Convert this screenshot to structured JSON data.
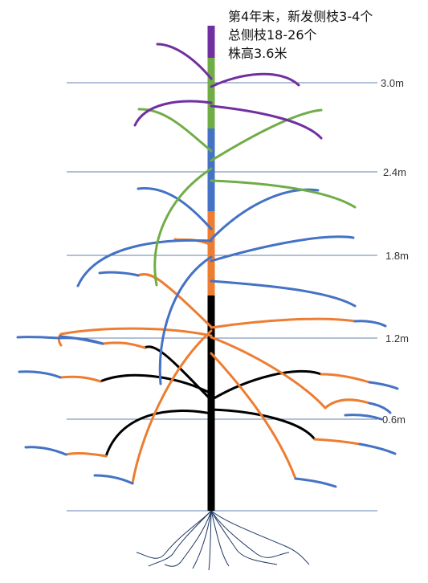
{
  "annotation": {
    "line1": "第4年末，新发侧枝3-4个",
    "line2": "总侧枝18-26个",
    "line3": "株高3.6米"
  },
  "height_markers": [
    {
      "label": "3.0m",
      "value": 3.0
    },
    {
      "label": "2.4m",
      "value": 2.4
    },
    {
      "label": "1.8m",
      "value": 1.8
    },
    {
      "label": "1.2m",
      "value": 1.2
    },
    {
      "label": "0.6m",
      "value": 0.6
    }
  ],
  "colors": {
    "year1": "#000000",
    "year2": "#ed7d31",
    "year3": "#4472c4",
    "year4": "#70ad47",
    "year4_new": "#7030a0",
    "gridline": "#2f5597",
    "roots": "#1f3864"
  }
}
